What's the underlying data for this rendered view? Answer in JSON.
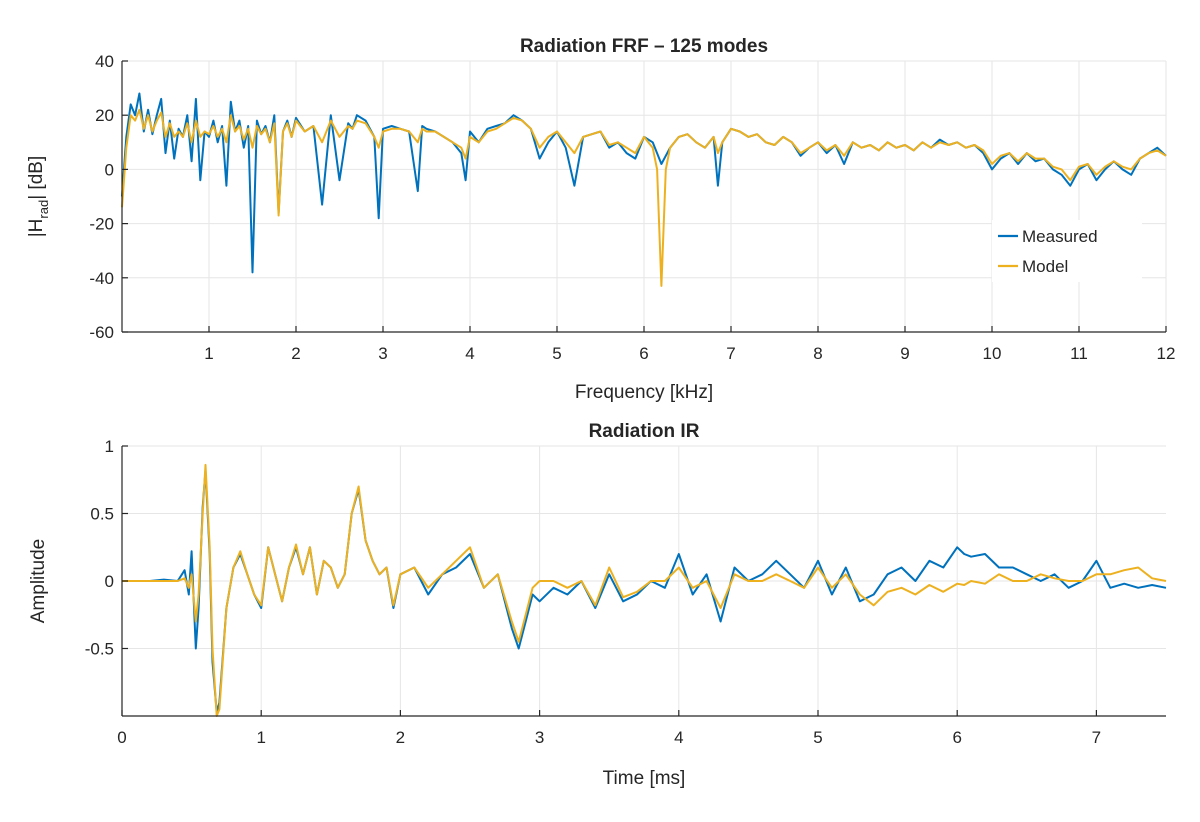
{
  "chart_data": [
    {
      "type": "line",
      "title": "Radiation FRF  –  125 modes",
      "xlabel": "Frequency [kHz]",
      "ylabel": "|H_rad| [dB]",
      "ylabel_parts": {
        "main": "|H",
        "sub": "rad",
        "tail": "| [dB]"
      },
      "xlim": [
        0,
        12
      ],
      "ylim": [
        -60,
        40
      ],
      "xticks": [
        1,
        2,
        3,
        4,
        5,
        6,
        7,
        8,
        9,
        10,
        11,
        12
      ],
      "yticks": [
        -60,
        -40,
        -20,
        0,
        20,
        40
      ],
      "grid": true,
      "legend": {
        "placement": "right-center",
        "entries": [
          "Measured",
          "Model"
        ]
      },
      "colors": {
        "Measured": "#0072BD",
        "Model": "#EDB120"
      },
      "series": [
        {
          "name": "Measured",
          "x": [
            0,
            0.05,
            0.1,
            0.15,
            0.2,
            0.25,
            0.3,
            0.35,
            0.4,
            0.45,
            0.5,
            0.55,
            0.6,
            0.65,
            0.7,
            0.75,
            0.8,
            0.85,
            0.9,
            0.95,
            1.0,
            1.05,
            1.1,
            1.15,
            1.2,
            1.25,
            1.3,
            1.35,
            1.4,
            1.45,
            1.5,
            1.55,
            1.6,
            1.65,
            1.7,
            1.75,
            1.8,
            1.85,
            1.9,
            1.95,
            2.0,
            2.1,
            2.2,
            2.3,
            2.4,
            2.5,
            2.6,
            2.65,
            2.7,
            2.8,
            2.9,
            2.95,
            3.0,
            3.1,
            3.2,
            3.3,
            3.4,
            3.45,
            3.5,
            3.6,
            3.7,
            3.8,
            3.9,
            3.95,
            4.0,
            4.1,
            4.2,
            4.3,
            4.4,
            4.5,
            4.6,
            4.7,
            4.8,
            4.9,
            5.0,
            5.1,
            5.2,
            5.3,
            5.4,
            5.5,
            5.6,
            5.7,
            5.8,
            5.9,
            6.0,
            6.1,
            6.2,
            6.3,
            6.4,
            6.5,
            6.6,
            6.7,
            6.8,
            6.85,
            6.9,
            7.0,
            7.1,
            7.2,
            7.3,
            7.4,
            7.5,
            7.6,
            7.7,
            7.8,
            7.9,
            8.0,
            8.1,
            8.2,
            8.3,
            8.4,
            8.5,
            8.6,
            8.7,
            8.8,
            8.9,
            9.0,
            9.1,
            9.2,
            9.3,
            9.4,
            9.5,
            9.6,
            9.7,
            9.8,
            9.9,
            10.0,
            10.1,
            10.2,
            10.3,
            10.4,
            10.5,
            10.6,
            10.7,
            10.8,
            10.9,
            11.0,
            11.1,
            11.2,
            11.3,
            11.4,
            11.5,
            11.6,
            11.7,
            11.8,
            11.9,
            12.0
          ],
          "y": [
            -10,
            12,
            24,
            20,
            28,
            14,
            22,
            13,
            20,
            26,
            6,
            18,
            4,
            15,
            12,
            20,
            3,
            26,
            -4,
            14,
            12,
            18,
            10,
            16,
            -6,
            25,
            14,
            18,
            8,
            16,
            -38,
            18,
            13,
            16,
            10,
            20,
            -16,
            14,
            18,
            12,
            19,
            14,
            16,
            -13,
            20,
            -4,
            17,
            15,
            20,
            18,
            12,
            -18,
            15,
            16,
            15,
            14,
            -8,
            16,
            15,
            14,
            12,
            10,
            6,
            -4,
            14,
            10,
            15,
            16,
            17,
            20,
            18,
            15,
            4,
            10,
            14,
            8,
            -6,
            12,
            13,
            14,
            8,
            10,
            6,
            4,
            12,
            10,
            2,
            8,
            12,
            13,
            10,
            8,
            12,
            -6,
            10,
            15,
            14,
            12,
            13,
            10,
            9,
            12,
            10,
            5,
            8,
            10,
            6,
            9,
            2,
            10,
            8,
            9,
            7,
            10,
            8,
            9,
            7,
            10,
            8,
            11,
            9,
            10,
            8,
            9,
            6,
            0,
            4,
            6,
            2,
            6,
            3,
            4,
            0,
            -2,
            -6,
            0,
            2,
            -4,
            0,
            3,
            0,
            -2,
            4,
            6,
            8,
            5
          ]
        },
        {
          "name": "Model",
          "x": [
            0,
            0.05,
            0.1,
            0.15,
            0.2,
            0.25,
            0.3,
            0.35,
            0.4,
            0.45,
            0.5,
            0.55,
            0.6,
            0.65,
            0.7,
            0.75,
            0.8,
            0.85,
            0.9,
            0.95,
            1.0,
            1.05,
            1.1,
            1.15,
            1.2,
            1.25,
            1.3,
            1.35,
            1.4,
            1.45,
            1.5,
            1.55,
            1.6,
            1.65,
            1.7,
            1.75,
            1.8,
            1.85,
            1.9,
            1.95,
            2.0,
            2.1,
            2.2,
            2.3,
            2.4,
            2.5,
            2.6,
            2.65,
            2.7,
            2.8,
            2.9,
            2.95,
            3.0,
            3.1,
            3.2,
            3.3,
            3.4,
            3.45,
            3.5,
            3.6,
            3.7,
            3.8,
            3.9,
            3.95,
            4.0,
            4.1,
            4.2,
            4.3,
            4.4,
            4.5,
            4.6,
            4.7,
            4.8,
            4.9,
            5.0,
            5.1,
            5.2,
            5.3,
            5.4,
            5.5,
            5.6,
            5.7,
            5.8,
            5.9,
            6.0,
            6.1,
            6.15,
            6.2,
            6.25,
            6.3,
            6.4,
            6.5,
            6.6,
            6.7,
            6.8,
            6.85,
            6.9,
            7.0,
            7.1,
            7.2,
            7.3,
            7.4,
            7.5,
            7.6,
            7.7,
            7.8,
            7.9,
            8.0,
            8.1,
            8.2,
            8.3,
            8.4,
            8.5,
            8.6,
            8.7,
            8.8,
            8.9,
            9.0,
            9.1,
            9.2,
            9.3,
            9.4,
            9.5,
            9.6,
            9.7,
            9.8,
            9.9,
            10.0,
            10.1,
            10.2,
            10.3,
            10.4,
            10.5,
            10.6,
            10.7,
            10.8,
            10.9,
            11.0,
            11.1,
            11.2,
            11.3,
            11.4,
            11.5,
            11.6,
            11.7,
            11.8,
            11.9,
            12.0
          ],
          "y": [
            -14,
            8,
            20,
            18,
            22,
            15,
            20,
            14,
            18,
            21,
            12,
            17,
            12,
            14,
            12,
            17,
            10,
            18,
            12,
            14,
            13,
            16,
            12,
            15,
            10,
            20,
            14,
            16,
            11,
            15,
            8,
            16,
            13,
            15,
            10,
            17,
            -17,
            14,
            17,
            12,
            18,
            14,
            16,
            10,
            18,
            12,
            16,
            15,
            18,
            17,
            12,
            8,
            14,
            15,
            15,
            14,
            10,
            15,
            14,
            14,
            12,
            10,
            8,
            4,
            12,
            10,
            14,
            15,
            17,
            19,
            18,
            15,
            8,
            12,
            14,
            10,
            6,
            12,
            13,
            14,
            9,
            10,
            8,
            6,
            12,
            8,
            0,
            -43,
            0,
            8,
            12,
            13,
            10,
            8,
            12,
            6,
            10,
            15,
            14,
            12,
            13,
            10,
            9,
            12,
            10,
            6,
            8,
            10,
            7,
            9,
            5,
            10,
            8,
            9,
            7,
            10,
            8,
            9,
            7,
            10,
            8,
            10,
            9,
            10,
            8,
            9,
            7,
            2,
            5,
            6,
            3,
            6,
            4,
            4,
            1,
            0,
            -4,
            1,
            2,
            -2,
            1,
            3,
            1,
            0,
            4,
            6,
            7,
            5
          ]
        }
      ]
    },
    {
      "type": "line",
      "title": "Radiation IR",
      "xlabel": "Time [ms]",
      "ylabel": "Amplitude",
      "xlim": [
        0,
        7.5
      ],
      "ylim": [
        -1,
        1
      ],
      "xticks": [
        0,
        1,
        2,
        3,
        4,
        5,
        6,
        7
      ],
      "yticks": [
        -0.5,
        0,
        0.5,
        1
      ],
      "grid": true,
      "colors": {
        "Measured": "#0072BD",
        "Model": "#EDB120"
      },
      "series": [
        {
          "name": "Measured",
          "x": [
            0,
            0.1,
            0.2,
            0.3,
            0.4,
            0.45,
            0.48,
            0.5,
            0.53,
            0.55,
            0.58,
            0.6,
            0.63,
            0.65,
            0.68,
            0.7,
            0.75,
            0.8,
            0.85,
            0.9,
            0.95,
            1.0,
            1.05,
            1.1,
            1.15,
            1.2,
            1.25,
            1.3,
            1.35,
            1.4,
            1.45,
            1.5,
            1.55,
            1.6,
            1.65,
            1.7,
            1.75,
            1.8,
            1.85,
            1.9,
            1.95,
            2.0,
            2.1,
            2.2,
            2.3,
            2.4,
            2.5,
            2.6,
            2.7,
            2.8,
            2.85,
            2.9,
            2.95,
            3.0,
            3.1,
            3.2,
            3.3,
            3.4,
            3.5,
            3.6,
            3.7,
            3.8,
            3.9,
            4.0,
            4.1,
            4.2,
            4.3,
            4.4,
            4.5,
            4.6,
            4.7,
            4.8,
            4.9,
            5.0,
            5.1,
            5.2,
            5.3,
            5.4,
            5.5,
            5.6,
            5.7,
            5.8,
            5.9,
            6.0,
            6.05,
            6.1,
            6.2,
            6.3,
            6.4,
            6.5,
            6.6,
            6.7,
            6.8,
            6.9,
            7.0,
            7.1,
            7.2,
            7.3,
            7.4,
            7.5
          ],
          "y": [
            0,
            0,
            0,
            0.01,
            0,
            0.08,
            -0.1,
            0.22,
            -0.5,
            -0.2,
            0.55,
            0.82,
            0.2,
            -0.6,
            -0.97,
            -0.9,
            -0.2,
            0.1,
            0.2,
            0.05,
            -0.1,
            -0.2,
            0.25,
            0.05,
            -0.15,
            0.1,
            0.25,
            0.05,
            0.25,
            -0.1,
            0.15,
            0.1,
            -0.05,
            0.05,
            0.5,
            0.68,
            0.3,
            0.15,
            0.05,
            0.1,
            -0.2,
            0.05,
            0.1,
            -0.1,
            0.05,
            0.1,
            0.2,
            -0.05,
            0.05,
            -0.35,
            -0.5,
            -0.3,
            -0.1,
            -0.15,
            -0.05,
            -0.1,
            0.0,
            -0.2,
            0.05,
            -0.15,
            -0.1,
            0.0,
            -0.05,
            0.2,
            -0.1,
            0.05,
            -0.3,
            0.1,
            0.0,
            0.05,
            0.15,
            0.05,
            -0.05,
            0.15,
            -0.1,
            0.1,
            -0.15,
            -0.1,
            0.05,
            0.1,
            0.0,
            0.15,
            0.1,
            0.25,
            0.2,
            0.18,
            0.2,
            0.1,
            0.1,
            0.05,
            0.0,
            0.05,
            -0.05,
            0.0,
            0.15,
            -0.05,
            -0.02,
            -0.05,
            -0.03,
            -0.05
          ]
        },
        {
          "name": "Model",
          "x": [
            0,
            0.1,
            0.2,
            0.3,
            0.4,
            0.45,
            0.48,
            0.5,
            0.53,
            0.55,
            0.58,
            0.6,
            0.63,
            0.65,
            0.68,
            0.7,
            0.75,
            0.8,
            0.85,
            0.9,
            0.95,
            1.0,
            1.05,
            1.1,
            1.15,
            1.2,
            1.25,
            1.3,
            1.35,
            1.4,
            1.45,
            1.5,
            1.55,
            1.6,
            1.65,
            1.7,
            1.75,
            1.8,
            1.85,
            1.9,
            1.95,
            2.0,
            2.1,
            2.2,
            2.3,
            2.4,
            2.5,
            2.6,
            2.7,
            2.8,
            2.85,
            2.9,
            2.95,
            3.0,
            3.1,
            3.2,
            3.3,
            3.4,
            3.5,
            3.6,
            3.7,
            3.8,
            3.9,
            4.0,
            4.1,
            4.2,
            4.3,
            4.4,
            4.5,
            4.6,
            4.7,
            4.8,
            4.9,
            5.0,
            5.1,
            5.2,
            5.3,
            5.4,
            5.5,
            5.6,
            5.7,
            5.8,
            5.9,
            6.0,
            6.05,
            6.1,
            6.2,
            6.3,
            6.4,
            6.5,
            6.6,
            6.7,
            6.8,
            6.9,
            7.0,
            7.1,
            7.2,
            7.3,
            7.4,
            7.5
          ],
          "y": [
            0,
            0,
            0,
            0,
            0,
            0.02,
            -0.05,
            0.05,
            -0.3,
            -0.1,
            0.5,
            0.86,
            0.25,
            -0.5,
            -1.0,
            -0.95,
            -0.2,
            0.1,
            0.22,
            0.05,
            -0.1,
            -0.18,
            0.25,
            0.05,
            -0.15,
            0.1,
            0.27,
            0.05,
            0.25,
            -0.1,
            0.15,
            0.1,
            -0.05,
            0.05,
            0.5,
            0.7,
            0.3,
            0.15,
            0.05,
            0.1,
            -0.18,
            0.05,
            0.1,
            -0.05,
            0.05,
            0.15,
            0.25,
            -0.05,
            0.05,
            -0.3,
            -0.45,
            -0.25,
            -0.05,
            0.0,
            0.0,
            -0.05,
            0.0,
            -0.18,
            0.1,
            -0.12,
            -0.08,
            0.0,
            0.0,
            0.1,
            -0.05,
            0.0,
            -0.2,
            0.05,
            0.0,
            0.0,
            0.05,
            0.0,
            -0.05,
            0.1,
            -0.05,
            0.05,
            -0.1,
            -0.18,
            -0.08,
            -0.05,
            -0.1,
            -0.03,
            -0.08,
            -0.02,
            -0.03,
            0.0,
            -0.02,
            0.05,
            0.0,
            0.0,
            0.05,
            0.02,
            0.0,
            0.0,
            0.05,
            0.05,
            0.08,
            0.1,
            0.02,
            0.0
          ]
        }
      ]
    }
  ]
}
